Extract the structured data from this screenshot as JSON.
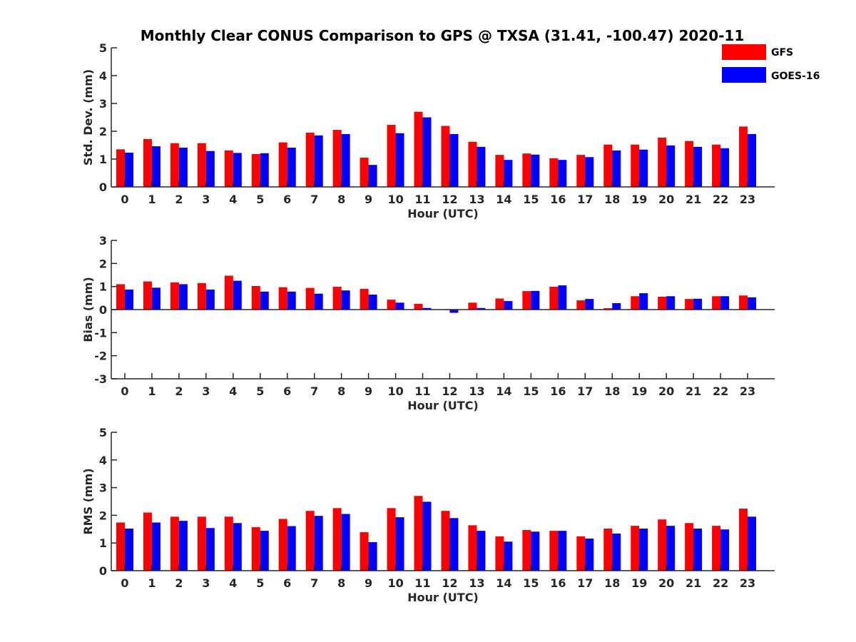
{
  "chart_data": {
    "type": "bar",
    "title": "Monthly Clear CONUS Comparison to GPS @ TXSA (31.41, -100.47) 2020-11",
    "legend": {
      "placement": "top-right",
      "entries": [
        "GFS",
        "GOES-16"
      ]
    },
    "colors": {
      "GFS": "#ff0000",
      "GOES-16": "#0000ff",
      "axis": "#262626"
    },
    "panels": [
      {
        "ylabel": "Std. Dev. (mm)",
        "xlabel": "Hour (UTC)",
        "ylim": [
          0,
          5
        ],
        "yticks": [
          0,
          1,
          2,
          3,
          4,
          5
        ],
        "categories": [
          "0",
          "1",
          "2",
          "3",
          "4",
          "5",
          "6",
          "7",
          "8",
          "9",
          "10",
          "11",
          "12",
          "13",
          "14",
          "15",
          "16",
          "17",
          "18",
          "19",
          "20",
          "21",
          "22",
          "23"
        ],
        "series": [
          {
            "name": "GFS",
            "values": [
              1.35,
              1.72,
              1.57,
              1.57,
              1.31,
              1.18,
              1.6,
              1.95,
              2.05,
              1.05,
              2.23,
              2.7,
              2.19,
              1.62,
              1.15,
              1.2,
              1.03,
              1.15,
              1.52,
              1.52,
              1.77,
              1.65,
              1.52,
              2.17
            ]
          },
          {
            "name": "GOES-16",
            "values": [
              1.23,
              1.46,
              1.41,
              1.29,
              1.22,
              1.21,
              1.41,
              1.85,
              1.9,
              0.79,
              1.93,
              2.5,
              1.9,
              1.44,
              0.97,
              1.16,
              0.97,
              1.07,
              1.31,
              1.34,
              1.49,
              1.44,
              1.39,
              1.9
            ]
          }
        ]
      },
      {
        "ylabel": "Bias (mm)",
        "xlabel": "Hour (UTC)",
        "ylim": [
          -3,
          3
        ],
        "yticks": [
          -3,
          -2,
          -1,
          0,
          1,
          2,
          3
        ],
        "categories": [
          "0",
          "1",
          "2",
          "3",
          "4",
          "5",
          "6",
          "7",
          "8",
          "9",
          "10",
          "11",
          "12",
          "13",
          "14",
          "15",
          "16",
          "17",
          "18",
          "19",
          "20",
          "21",
          "22",
          "23"
        ],
        "series": [
          {
            "name": "GFS",
            "values": [
              1.1,
              1.22,
              1.18,
              1.15,
              1.47,
              1.02,
              0.97,
              0.94,
              0.99,
              0.9,
              0.43,
              0.25,
              0.0,
              0.3,
              0.48,
              0.8,
              0.99,
              0.4,
              0.06,
              0.58,
              0.56,
              0.46,
              0.58,
              0.61
            ]
          },
          {
            "name": "GOES-16",
            "values": [
              0.87,
              0.95,
              1.1,
              0.87,
              1.25,
              0.78,
              0.78,
              0.69,
              0.83,
              0.65,
              0.3,
              0.07,
              -0.14,
              0.07,
              0.37,
              0.81,
              1.05,
              0.46,
              0.28,
              0.71,
              0.58,
              0.47,
              0.58,
              0.53
            ]
          }
        ]
      },
      {
        "ylabel": "RMS (mm)",
        "xlabel": "Hour (UTC)",
        "ylim": [
          0,
          5
        ],
        "yticks": [
          0,
          1,
          2,
          3,
          4,
          5
        ],
        "categories": [
          "0",
          "1",
          "2",
          "3",
          "4",
          "5",
          "6",
          "7",
          "8",
          "9",
          "10",
          "11",
          "12",
          "13",
          "14",
          "15",
          "16",
          "17",
          "18",
          "19",
          "20",
          "21",
          "22",
          "23"
        ],
        "series": [
          {
            "name": "GFS",
            "values": [
              1.74,
              2.1,
              1.95,
              1.95,
              1.95,
              1.57,
              1.87,
              2.16,
              2.26,
              1.39,
              2.26,
              2.7,
              2.16,
              1.64,
              1.24,
              1.47,
              1.44,
              1.24,
              1.52,
              1.62,
              1.85,
              1.72,
              1.62,
              2.24
            ]
          },
          {
            "name": "GOES-16",
            "values": [
              1.52,
              1.74,
              1.8,
              1.54,
              1.72,
              1.44,
              1.61,
              1.98,
              2.05,
              1.03,
              1.93,
              2.49,
              1.9,
              1.44,
              1.05,
              1.41,
              1.44,
              1.16,
              1.34,
              1.52,
              1.62,
              1.52,
              1.49,
              1.95
            ]
          }
        ]
      }
    ]
  }
}
